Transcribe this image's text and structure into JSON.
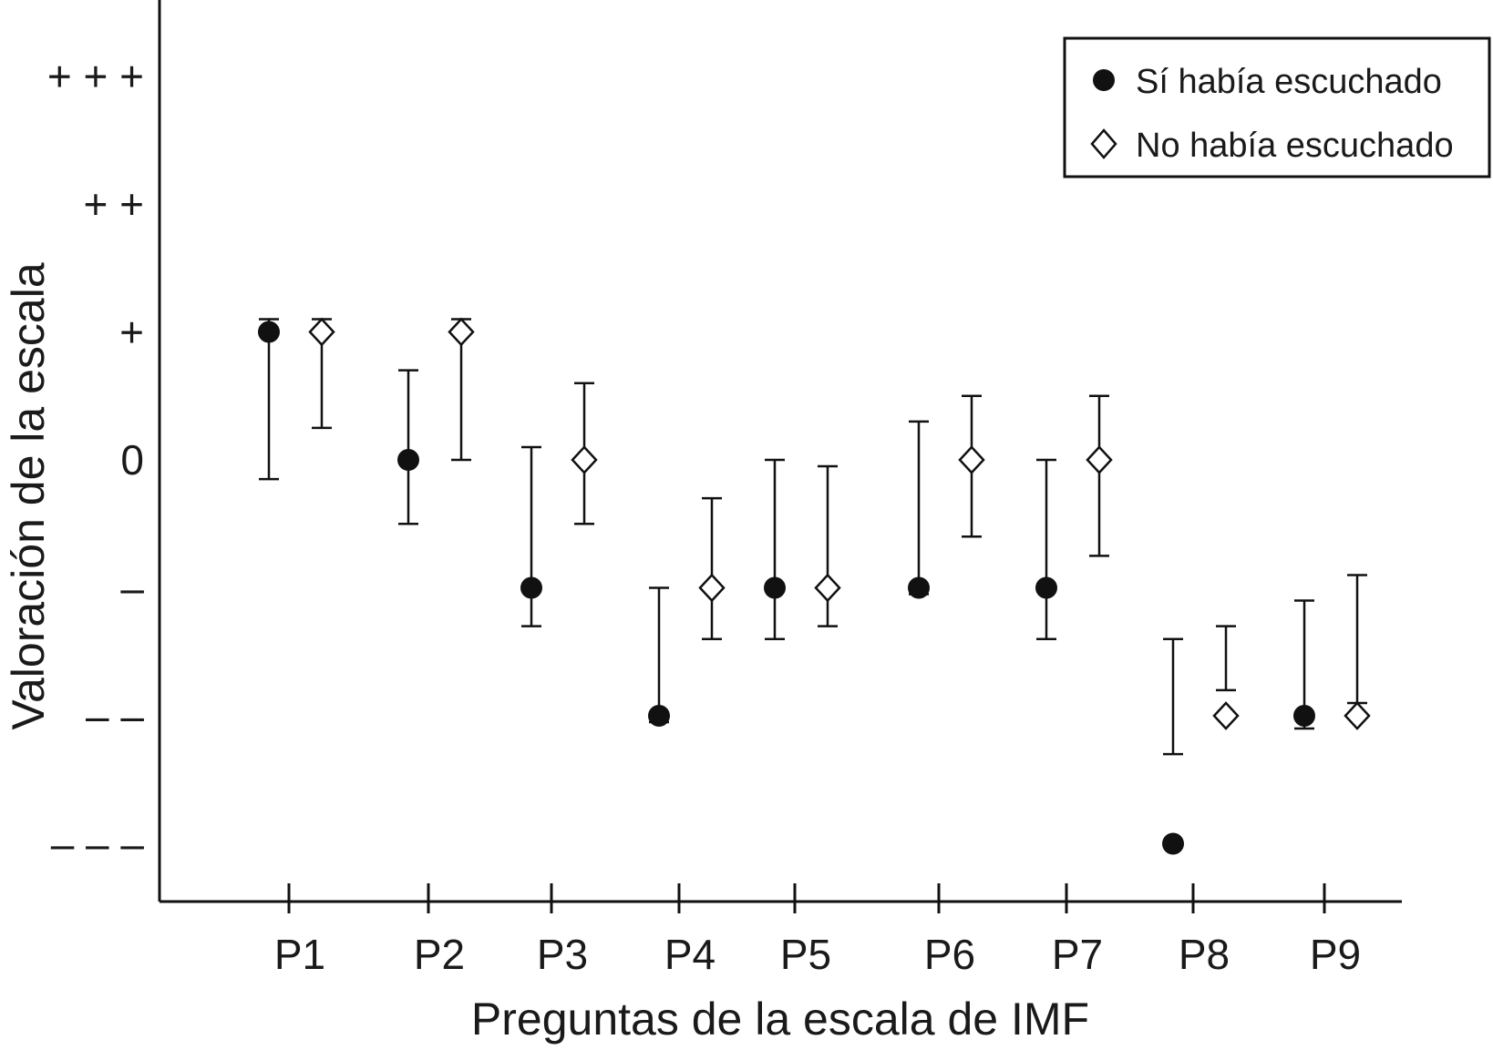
{
  "chart_data": {
    "type": "scatter",
    "title": "",
    "xlabel": "Preguntas de la escala de IMF",
    "ylabel": "Valoración de la escala",
    "categories": [
      "P1",
      "P2",
      "P3",
      "P4",
      "P5",
      "P6",
      "P7",
      "P8",
      "P9"
    ],
    "y_ticks": [
      {
        "value": 3,
        "label": "+ + +"
      },
      {
        "value": 2,
        "label": "+ +"
      },
      {
        "value": 1,
        "label": "+"
      },
      {
        "value": 0,
        "label": "0"
      },
      {
        "value": -1,
        "label": "–"
      },
      {
        "value": -2,
        "label": "– –"
      },
      {
        "value": -3,
        "label": "– – –"
      }
    ],
    "ylim": [
      -3.5,
      3.5
    ],
    "grid": false,
    "legend": {
      "position": "top-right"
    },
    "series": [
      {
        "name": "Sí había escuchado",
        "marker": "filled-circle",
        "color": "#111111",
        "values": [
          1.0,
          0.0,
          -1.0,
          -2.0,
          -1.0,
          -1.0,
          -1.0,
          -3.0,
          -2.0
        ],
        "err_low": [
          -0.15,
          -0.5,
          -1.3,
          -2.05,
          -1.4,
          -1.05,
          -1.4,
          -2.3,
          -2.1
        ],
        "err_high": [
          1.1,
          0.7,
          0.1,
          -1.0,
          0.0,
          0.3,
          0.0,
          -1.4,
          -1.1
        ]
      },
      {
        "name": "No había escuchado",
        "marker": "open-diamond",
        "color": "#111111",
        "values": [
          1.0,
          1.0,
          0.0,
          -1.0,
          -1.0,
          0.0,
          0.0,
          -2.0,
          -2.0
        ],
        "err_low": [
          0.25,
          0.0,
          -0.5,
          -1.4,
          -1.3,
          -0.6,
          -0.75,
          -1.8,
          -1.9
        ],
        "err_high": [
          1.1,
          1.1,
          0.6,
          -0.3,
          -0.05,
          0.5,
          0.5,
          -1.3,
          -0.9
        ]
      }
    ]
  }
}
